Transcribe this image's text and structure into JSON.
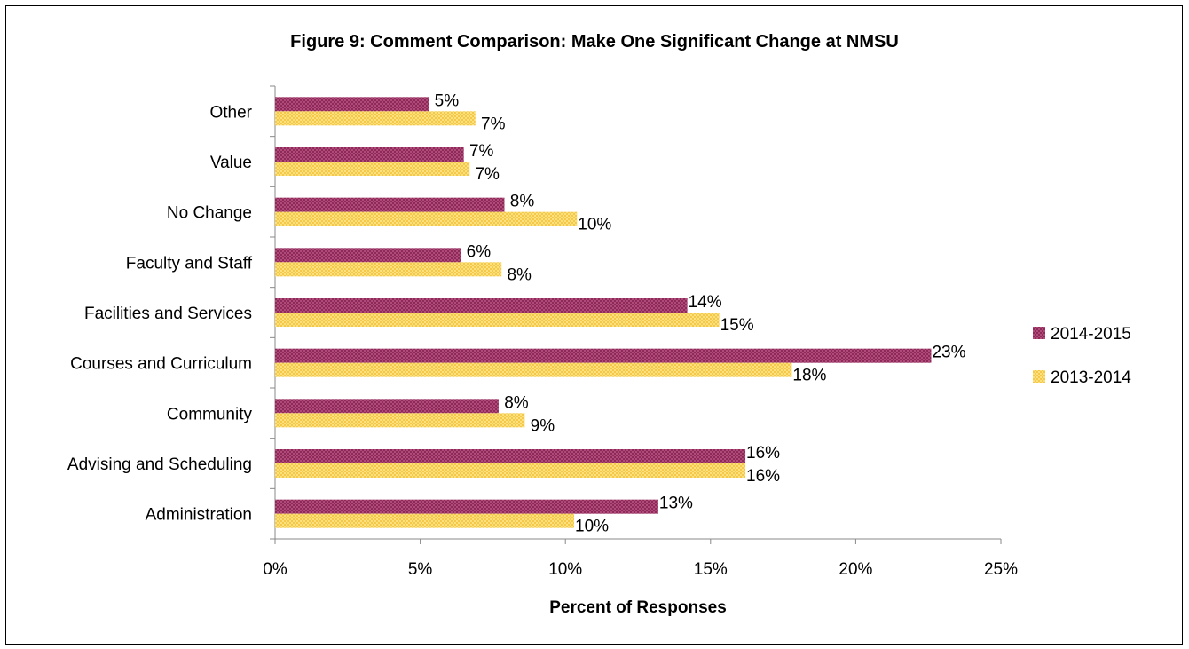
{
  "chart_data": {
    "type": "bar",
    "orientation": "horizontal",
    "title": "Figure 9: Comment Comparison: Make One Significant Change at NMSU",
    "xlabel": "Percent of Responses",
    "ylabel": "",
    "xlim": [
      0,
      25
    ],
    "x_ticks": [
      "0%",
      "5%",
      "10%",
      "15%",
      "20%",
      "25%"
    ],
    "categories": [
      "Other",
      "Value",
      "No Change",
      "Faculty and Staff",
      "Facilities and Services",
      "Courses and Curriculum",
      "Community",
      "Advising and Scheduling",
      "Administration"
    ],
    "series": [
      {
        "name": "2014-2015",
        "color": "#8e2a58",
        "values": [
          5.3,
          6.5,
          7.9,
          6.4,
          14.2,
          22.6,
          7.7,
          16.2,
          13.2
        ],
        "labels": [
          "5%",
          "7%",
          "8%",
          "6%",
          "14%",
          "23%",
          "8%",
          "16%",
          "13%"
        ]
      },
      {
        "name": "2013-2014",
        "color": "#f6c84a",
        "values": [
          6.9,
          6.7,
          10.4,
          7.8,
          15.3,
          17.8,
          8.6,
          16.2,
          10.3
        ],
        "labels": [
          "7%",
          "7%",
          "10%",
          "8%",
          "15%",
          "18%",
          "9%",
          "16%",
          "10%"
        ]
      }
    ],
    "legend_position": "right",
    "grid": false
  }
}
